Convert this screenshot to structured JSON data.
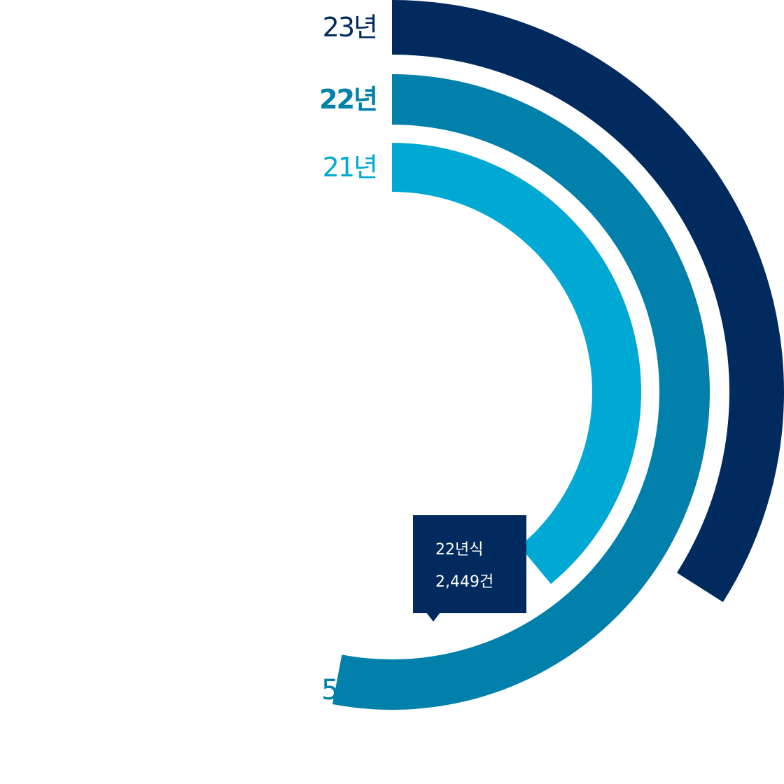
{
  "chart_data": {
    "type": "radial-bar",
    "center_value_unit": "%",
    "series": [
      {
        "name": "23년",
        "value": 34,
        "value_label": "34%",
        "color": "#012a5e",
        "bold": false
      },
      {
        "name": "22년",
        "value": 53,
        "value_label": "53%",
        "color": "#0080aa",
        "bold": true
      },
      {
        "name": "21년",
        "value": 39,
        "value_label": "",
        "color": "#00a9d4",
        "bold": false
      }
    ],
    "tooltip": {
      "line1": "22년식",
      "line2": "2,449건",
      "color": "#012a5e"
    }
  }
}
